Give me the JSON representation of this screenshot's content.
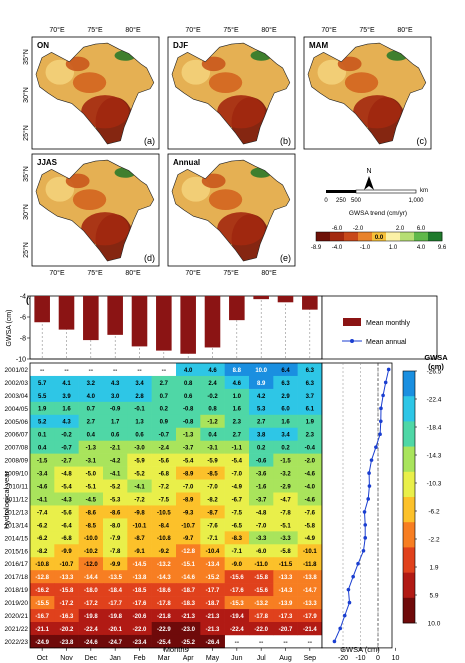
{
  "maps": {
    "panels": [
      {
        "label": "ON",
        "tag": "(a)"
      },
      {
        "label": "DJF",
        "tag": "(b)"
      },
      {
        "label": "MAM",
        "tag": "(c)"
      },
      {
        "label": "JJAS",
        "tag": "(d)"
      },
      {
        "label": "Annual",
        "tag": "(e)"
      }
    ],
    "lon_ticks": [
      "70°E",
      "75°E",
      "80°E"
    ],
    "lat_ticks": [
      "35°N",
      "30°N",
      "25°N"
    ],
    "north_label": "N",
    "scalebar": {
      "ticks": [
        "0",
        "250",
        "500",
        "1,000"
      ],
      "unit": "km"
    },
    "legend_title": "GWSA trend (cm/yr)",
    "legend_top_ticks": [
      "-6.0",
      "-2.0",
      "2.0",
      "6.0"
    ],
    "legend_bottom_ticks": [
      "-8.9",
      "-4.0",
      "-1.0",
      "1.0",
      "4.0",
      "9.6"
    ],
    "legend_center": "0.0",
    "legend_colors": [
      "#6e1108",
      "#a3290f",
      "#c8481a",
      "#e8822b",
      "#f6c13b",
      "#fbf1a6",
      "#b6de74",
      "#5fb84a",
      "#1f7a2c"
    ]
  },
  "panel_f_label": "(f)",
  "chart_data": {
    "type": "heatmap",
    "xlabel": "Months",
    "ylabel": "Hydrological year",
    "months": [
      "Oct",
      "Nov",
      "Dec",
      "Jan",
      "Feb",
      "Mar",
      "Apr",
      "May",
      "Jun",
      "Jul",
      "Aug",
      "Sep"
    ],
    "years": [
      "2001/02",
      "2002/03",
      "2003/04",
      "2004/05",
      "2005/06",
      "2006/07",
      "2007/08",
      "2008/09",
      "2009/10",
      "2010/11",
      "2011/12",
      "2012/13",
      "2013/14",
      "2014/15",
      "2015/16",
      "2016/17",
      "2017/18",
      "2018/19",
      "2019/20",
      "2020/21",
      "2021/22",
      "2022/23"
    ],
    "missing_symbol": "--",
    "values": [
      [
        null,
        null,
        null,
        null,
        null,
        null,
        4.0,
        4.6,
        8.8,
        10.0,
        6.4,
        6.3
      ],
      [
        5.7,
        4.1,
        3.2,
        4.3,
        3.4,
        2.7,
        0.8,
        2.4,
        4.6,
        8.9,
        6.3,
        6.3
      ],
      [
        5.5,
        3.9,
        4.0,
        3.0,
        2.8,
        0.7,
        0.6,
        -0.2,
        1.0,
        4.2,
        2.9,
        3.7
      ],
      [
        1.9,
        1.6,
        0.7,
        -0.9,
        -0.1,
        0.2,
        -0.8,
        0.8,
        1.6,
        5.3,
        6.0,
        6.1
      ],
      [
        5.2,
        4.3,
        2.7,
        1.7,
        1.3,
        0.9,
        -0.8,
        -1.2,
        2.3,
        2.7,
        1.6,
        1.9
      ],
      [
        0.1,
        -0.2,
        0.4,
        0.6,
        0.6,
        -0.7,
        -1.3,
        0.4,
        2.7,
        3.8,
        3.4,
        2.3
      ],
      [
        0.4,
        -0.7,
        -1.3,
        -2.1,
        -3.0,
        -2.4,
        -3.7,
        -3.1,
        -1.1,
        0.2,
        0.2,
        -0.4
      ],
      [
        -1.5,
        -2.7,
        -3.1,
        -4.2,
        -5.9,
        -5.6,
        -5.4,
        -5.9,
        -5.4,
        -0.6,
        -1.5,
        -2.0
      ],
      [
        -3.4,
        -4.8,
        -5.0,
        -4.1,
        -5.2,
        -6.8,
        -8.9,
        -8.5,
        -7.0,
        -3.6,
        -3.2,
        -4.6
      ],
      [
        -4.6,
        -5.4,
        -5.1,
        -5.2,
        -4.1,
        -7.2,
        -7.0,
        -7.0,
        -4.9,
        -1.6,
        -2.9,
        -4.0
      ],
      [
        -4.1,
        -4.3,
        -4.5,
        -5.3,
        -7.2,
        -7.5,
        -8.9,
        -8.2,
        -6.7,
        -3.7,
        -4.7,
        -4.6
      ],
      [
        -7.4,
        -5.6,
        -8.6,
        -8.6,
        -9.8,
        -10.5,
        -9.3,
        -8.7,
        -7.5,
        -4.8,
        -7.8,
        -7.6
      ],
      [
        -6.2,
        -6.4,
        -8.5,
        -8.0,
        -10.1,
        -8.4,
        -10.7,
        -7.6,
        -6.5,
        -7.0,
        -5.1,
        -5.8
      ],
      [
        -6.2,
        -6.8,
        -10.0,
        -7.9,
        -8.7,
        -10.8,
        -9.7,
        -7.1,
        -8.3,
        -3.3,
        -3.3,
        -4.9
      ],
      [
        -8.2,
        -9.9,
        -10.2,
        -7.8,
        -9.1,
        -9.2,
        -12.8,
        -10.4,
        -7.1,
        -6.0,
        -5.8,
        -10.1
      ],
      [
        -10.8,
        -10.7,
        -12.0,
        -9.9,
        -14.5,
        -13.2,
        -15.1,
        -13.4,
        -9.0,
        -11.0,
        -11.5,
        -11.8
      ],
      [
        -12.8,
        -13.3,
        -14.4,
        -13.5,
        -13.8,
        -14.3,
        -14.6,
        -15.2,
        -15.6,
        -15.8,
        -13.3,
        -13.8
      ],
      [
        -16.2,
        -15.8,
        -18.0,
        -18.4,
        -18.5,
        -18.6,
        -18.7,
        -17.7,
        -17.6,
        -15.6,
        -14.3,
        -14.7
      ],
      [
        -15.5,
        -17.2,
        -17.2,
        -17.7,
        -17.6,
        -17.8,
        -18.3,
        -18.7,
        -15.3,
        -13.2,
        -13.9,
        -13.3
      ],
      [
        -16.7,
        -16.3,
        -19.8,
        -19.8,
        -20.6,
        -21.8,
        -21.3,
        -21.3,
        -19.4,
        -17.8,
        -17.3,
        -17.9
      ],
      [
        -21.1,
        -20.2,
        -22.4,
        -20.1,
        -22.0,
        -22.9,
        -23.0,
        -21.3,
        -22.4,
        -22.0,
        -20.7,
        -21.4
      ],
      [
        -24.9,
        -23.8,
        -24.6,
        -24.7,
        -23.4,
        -25.4,
        -25.2,
        -26.4,
        null,
        null,
        null,
        null
      ]
    ],
    "mean_monthly": {
      "name": "Mean monthly",
      "ylabel": "GWSA (cm)",
      "ylim": [
        -10,
        -4
      ],
      "yticks": [
        "-4",
        "-6",
        "-8",
        "-10"
      ],
      "values": [
        -6.5,
        -7.2,
        -8.2,
        -7.7,
        -8.8,
        -9.2,
        -9.5,
        -8.9,
        -6.3,
        -4.3,
        -4.6,
        -5.3
      ]
    },
    "mean_annual": {
      "name": "Mean annual",
      "xlabel": "GWSA (cm)",
      "xlim": [
        -32,
        8
      ],
      "xticks": [
        "-20",
        "-10",
        "0",
        "10"
      ],
      "values": [
        6.1,
        4.4,
        2.9,
        1.7,
        1.6,
        1.2,
        -1.2,
        -3.7,
        -5.1,
        -4.9,
        -5.6,
        -7.7,
        -7.3,
        -7.3,
        -8.3,
        -11.4,
        -14.2,
        -16.9,
        -16.3,
        -19.0,
        -21.6,
        -24.9
      ]
    },
    "colorbar": {
      "title": "GWSA\n(cm)",
      "ticks": [
        "-26.5",
        "-22.4",
        "-18.4",
        "-14.3",
        "-10.3",
        "-6.2",
        "-2.2",
        "1.9",
        "5.9",
        "10.0"
      ],
      "colors": [
        "#6f0a0a",
        "#b11a14",
        "#e0411c",
        "#f77e22",
        "#fcc12a",
        "#e9ef4a",
        "#a9e45c",
        "#4fd7a6",
        "#2ec6e6",
        "#1a8fe0"
      ]
    }
  }
}
